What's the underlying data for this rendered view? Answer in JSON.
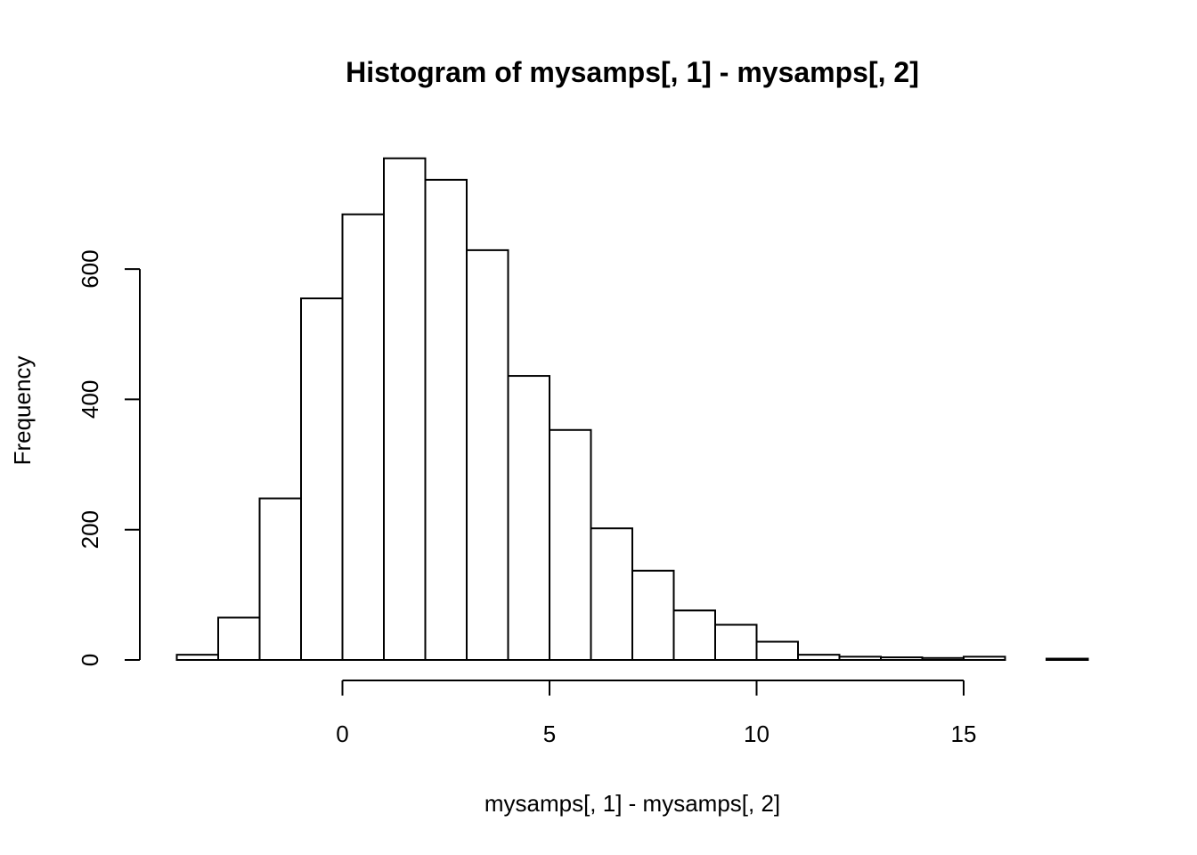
{
  "chart_data": {
    "type": "bar",
    "title": "Histogram of mysamps[, 1] - mysamps[, 2]",
    "xlabel": "mysamps[, 1] - mysamps[, 2]",
    "ylabel": "Frequency",
    "bin_edges": [
      -4,
      -3,
      -2,
      -1,
      0,
      1,
      2,
      3,
      4,
      5,
      6,
      7,
      8,
      9,
      10,
      11,
      12,
      13,
      14,
      15,
      16,
      17,
      18
    ],
    "values": [
      8,
      65,
      248,
      555,
      684,
      770,
      737,
      629,
      436,
      353,
      202,
      137,
      76,
      54,
      28,
      8,
      5,
      4,
      3,
      5,
      0,
      2
    ],
    "xlim": [
      -4,
      18
    ],
    "ylim": [
      0,
      770
    ],
    "xticks": [
      0,
      5,
      10,
      15
    ],
    "xtick_labels": [
      "0",
      "5",
      "10",
      "15"
    ],
    "yticks": [
      0,
      200,
      400,
      600
    ],
    "ytick_labels": [
      "0",
      "200",
      "400",
      "600"
    ],
    "grid": false
  }
}
